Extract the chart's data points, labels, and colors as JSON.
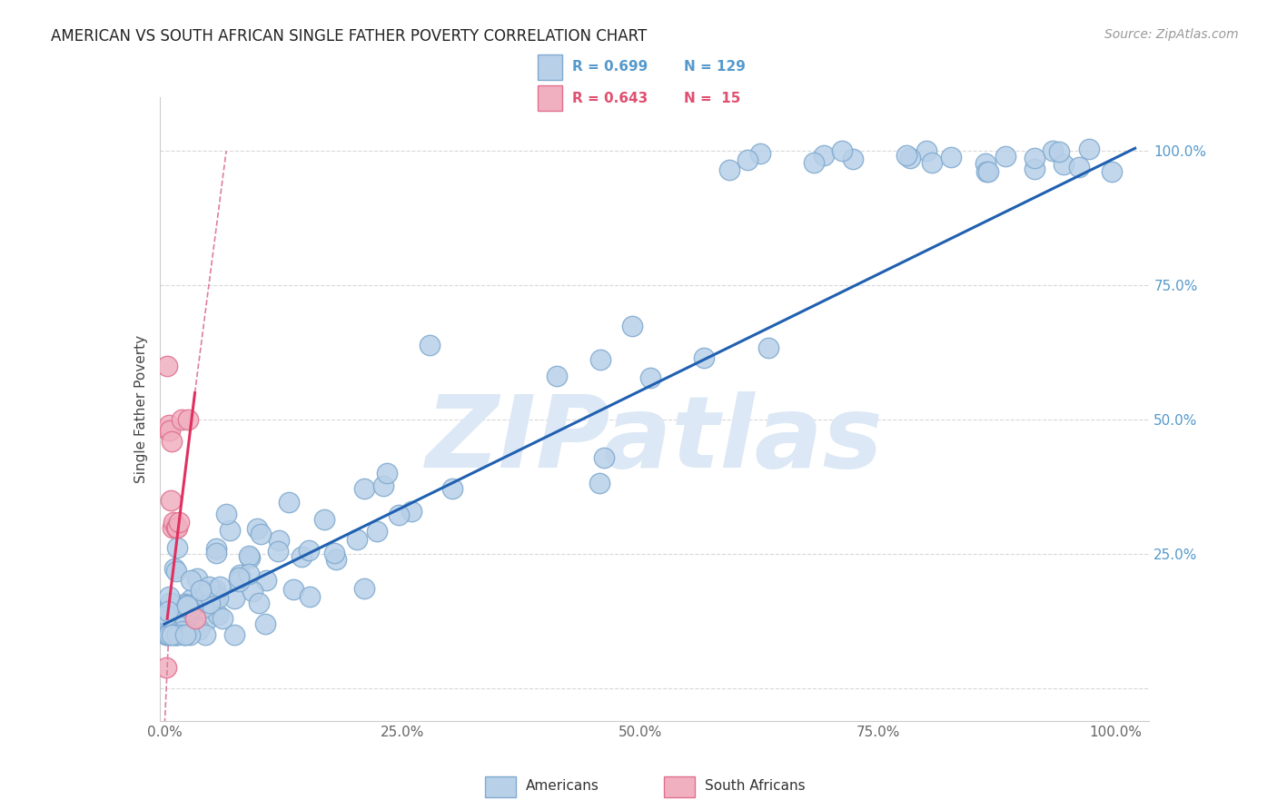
{
  "title": "AMERICAN VS SOUTH AFRICAN SINGLE FATHER POVERTY CORRELATION CHART",
  "source": "Source: ZipAtlas.com",
  "ylabel": "Single Father Poverty",
  "blue_line_color": "#2060b0",
  "pink_line_color": "#e03060",
  "pink_dashed_color": "#e08098",
  "watermark_text": "ZIPatlas",
  "watermark_color": "#dce8f5",
  "background_color": "#ffffff",
  "grid_color": "#d8d8d8",
  "americans_face": "#b8d0e8",
  "americans_edge": "#80aad0",
  "sa_face": "#f0b0c0",
  "sa_edge": "#e07090",
  "title_fontsize": 12,
  "tick_label_color_right": "#5599cc",
  "tick_label_color_bottom": "#666666",
  "legend_R1": "R = 0.699",
  "legend_N1": "N = 129",
  "legend_R2": "R = 0.643",
  "legend_N2": "N =  15",
  "legend_color1": "#5599cc",
  "legend_color2": "#e05070"
}
